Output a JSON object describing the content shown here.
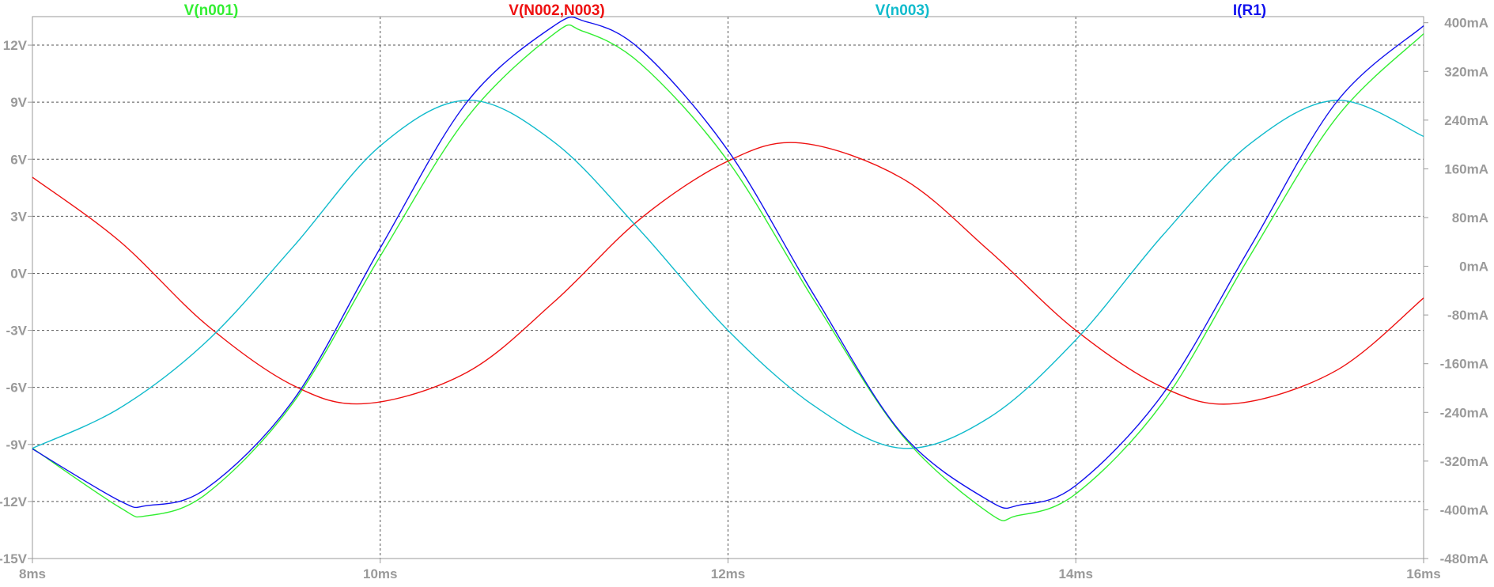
{
  "chart_data": {
    "type": "line",
    "x_unit": "ms",
    "xlim": [
      8,
      16
    ],
    "x_ticks": [
      8,
      10,
      12,
      14,
      16
    ],
    "x_tick_labels": [
      "8ms",
      "10ms",
      "12ms",
      "14ms",
      "16ms"
    ],
    "ylim_left": [
      -15,
      13.5
    ],
    "y_ticks_left": [
      12,
      9,
      6,
      3,
      0,
      -3,
      -6,
      -9,
      -12,
      -15
    ],
    "y_tick_labels_left": [
      "12V",
      "9V",
      "6V",
      "3V",
      "0V",
      "-3V",
      "-6V",
      "-9V",
      "-12V",
      "-15V"
    ],
    "ylim_right": [
      -480,
      410
    ],
    "y_ticks_right": [
      400,
      320,
      240,
      160,
      80,
      0,
      -80,
      -160,
      -240,
      -320,
      -400,
      -480
    ],
    "y_tick_labels_right": [
      "400mA",
      "320mA",
      "240mA",
      "160mA",
      "80mA",
      "0mA",
      "-80mA",
      "-160mA",
      "-240mA",
      "-320mA",
      "-400mA",
      "-480mA"
    ],
    "grid": true,
    "legend_position": "top",
    "series": [
      {
        "name": "V(n001)",
        "axis": "left",
        "color": "#33ee33",
        "x": [
          8.0,
          8.5,
          8.66,
          9.0,
          9.5,
          10.0,
          10.5,
          11.0,
          11.16,
          11.5,
          12.0,
          12.5,
          13.0,
          13.5,
          13.66,
          14.0,
          14.5,
          15.0,
          15.5,
          16.0
        ],
        "y": [
          -9.2,
          -12.3,
          -12.75,
          -11.6,
          -6.8,
          0.9,
          8.2,
          12.6,
          12.75,
          11.0,
          5.9,
          -1.5,
          -8.5,
          -12.6,
          -12.75,
          -11.6,
          -6.8,
          0.9,
          8.2,
          12.6
        ]
      },
      {
        "name": "V(N002,N003)",
        "axis": "left",
        "color": "#ee1111",
        "x": [
          8.0,
          8.5,
          9.0,
          9.5,
          9.92,
          10.5,
          11.0,
          11.5,
          12.0,
          12.42,
          13.0,
          13.5,
          14.0,
          14.5,
          14.92,
          15.5,
          16.0
        ],
        "y": [
          5.05,
          1.7,
          -2.7,
          -5.9,
          -6.85,
          -5.2,
          -1.5,
          2.9,
          5.9,
          6.85,
          5.0,
          1.2,
          -3.0,
          -6.0,
          -6.85,
          -5.1,
          -1.3
        ]
      },
      {
        "name": "V(n003)",
        "axis": "left",
        "color": "#11bbcc",
        "x": [
          8.0,
          8.5,
          9.0,
          9.5,
          10.0,
          10.5,
          11.0,
          11.5,
          12.0,
          12.5,
          13.0,
          13.5,
          14.0,
          14.5,
          15.0,
          15.5,
          16.0
        ],
        "y": [
          -9.2,
          -7.1,
          -3.6,
          1.4,
          6.7,
          9.1,
          6.9,
          2.2,
          -3.0,
          -7.0,
          -9.2,
          -7.6,
          -3.5,
          2.0,
          6.8,
          9.1,
          7.2
        ]
      },
      {
        "name": "I(R1)",
        "axis": "right",
        "color": "#1111ee",
        "x": [
          8.0,
          8.5,
          8.66,
          9.0,
          9.5,
          10.0,
          10.5,
          11.0,
          11.18,
          11.5,
          12.0,
          12.5,
          13.0,
          13.5,
          13.68,
          14.0,
          14.5,
          15.0,
          15.5,
          16.0
        ],
        "y": [
          -300,
          -385,
          -393,
          -365,
          -220,
          30,
          270,
          395,
          402,
          355,
          190,
          -50,
          -275,
          -385,
          -392,
          -360,
          -210,
          30,
          270,
          395
        ]
      }
    ]
  }
}
